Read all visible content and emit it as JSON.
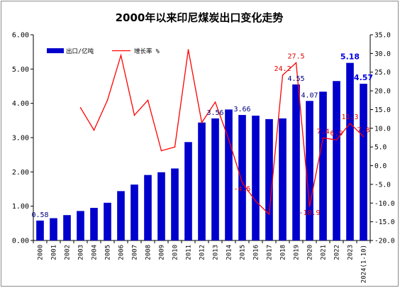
{
  "chart_data": {
    "type": "bar",
    "title": "2000年以来印尼煤炭出口变化走势",
    "categories": [
      "2000",
      "2001",
      "2002",
      "2003",
      "2004",
      "2005",
      "2006",
      "2007",
      "2008",
      "2009",
      "2010",
      "2011",
      "2012",
      "2013",
      "2014",
      "2015",
      "2016",
      "2017",
      "2018",
      "2019",
      "2020",
      "2021",
      "2022",
      "2023",
      "2024(1-10)"
    ],
    "series": [
      {
        "name": "出口/亿吨",
        "type": "bar",
        "axis": "left",
        "color": "#0000cc",
        "values": [
          0.58,
          0.65,
          0.74,
          0.86,
          0.95,
          1.1,
          1.44,
          1.63,
          1.91,
          1.99,
          2.1,
          2.87,
          3.44,
          3.56,
          3.82,
          3.66,
          3.64,
          3.54,
          3.56,
          4.55,
          4.07,
          4.34,
          4.65,
          5.18,
          4.57
        ]
      },
      {
        "name": "增长率 %",
        "type": "line",
        "axis": "right",
        "color": "#ff0000",
        "values": [
          null,
          null,
          null,
          15.5,
          9.5,
          17.5,
          29.5,
          13.5,
          17.5,
          4.0,
          5.0,
          31.0,
          11.5,
          17.0,
          7.0,
          -4.5,
          -9.5,
          -13.0,
          24.2,
          27.5,
          -10.9,
          7.4,
          6.9,
          11.3,
          7.8
        ]
      }
    ],
    "y_left": {
      "min": 0,
      "max": 6,
      "step": 1,
      "tick_labels": [
        "0.00",
        "1.00",
        "2.00",
        "3.00",
        "4.00",
        "5.00",
        "6.00"
      ]
    },
    "y_right": {
      "min": -20,
      "max": 35,
      "step": 5,
      "tick_labels": [
        "-20.0",
        "-15.0",
        "-10.0",
        "-5.0",
        "0.0",
        "5.0",
        "10.0",
        "15.0",
        "20.0",
        "25.0",
        "30.0",
        "35.0"
      ]
    },
    "bar_labels": [
      {
        "index": 0,
        "text": "0.58",
        "bold": false
      },
      {
        "index": 13,
        "text": "3.56",
        "bold": false
      },
      {
        "index": 15,
        "text": "3.66",
        "bold": false
      },
      {
        "index": 19,
        "text": "4.55",
        "bold": false
      },
      {
        "index": 20,
        "text": "4.07",
        "bold": false
      },
      {
        "index": 23,
        "text": "5.18",
        "bold": true
      },
      {
        "index": 24,
        "text": "4.57",
        "bold": true
      }
    ],
    "line_labels": [
      {
        "index": 15,
        "text": "-4.5"
      },
      {
        "index": 18,
        "text": "24.2"
      },
      {
        "index": 19,
        "text": "27.5"
      },
      {
        "index": 20,
        "text": "-10.9"
      },
      {
        "index": 21,
        "text": "7.4"
      },
      {
        "index": 22,
        "text": "6.9"
      },
      {
        "index": 23,
        "text": "11.3"
      },
      {
        "index": 24,
        "text": "7.8"
      }
    ],
    "legend": {
      "placement": "top-left"
    },
    "grid": false
  }
}
